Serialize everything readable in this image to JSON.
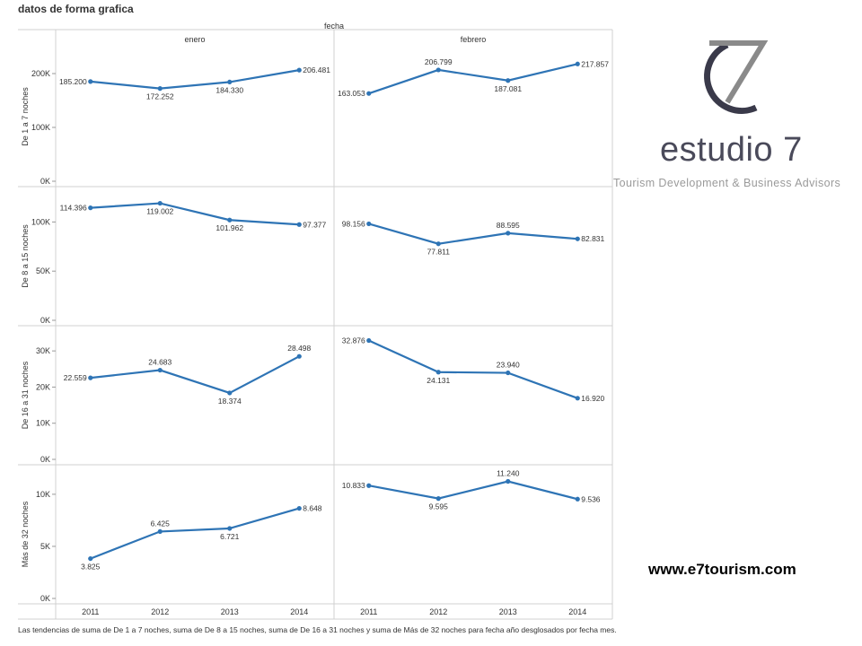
{
  "page": {
    "title": "datos de forma grafica",
    "caption": "Las tendencias de suma de De 1 a 7 noches, suma de De 8 a 15 noches, suma de De 16 a 31 noches y suma de Más de 32 noches para fecha año desglosados por fecha mes.",
    "website": "www.e7tourism.com"
  },
  "logo": {
    "name": "estudio 7",
    "tagline": "Tourism Development & Business Advisors"
  },
  "colors": {
    "line": "#2e74b5",
    "grid": "#d0d0d0",
    "text": "#333333"
  },
  "chart_data": {
    "type": "line",
    "column_header": "fecha",
    "columns": [
      "enero",
      "febrero"
    ],
    "x": [
      "2011",
      "2012",
      "2013",
      "2014"
    ],
    "rows": [
      {
        "label": "De 1 a 7 noches",
        "ticks": [
          {
            "v": 0,
            "t": "0K"
          },
          {
            "v": 100000,
            "t": "100K"
          },
          {
            "v": 200000,
            "t": "200K"
          }
        ],
        "ylim": [
          0,
          230000
        ],
        "series": [
          {
            "values": [
              185200,
              172252,
              184330,
              206481
            ],
            "labels": [
              "185.200",
              "172.252",
              "184.330",
              "206.481"
            ],
            "pos": [
              "left",
              "below",
              "below",
              "right"
            ]
          },
          {
            "values": [
              163053,
              206799,
              187081,
              217857
            ],
            "labels": [
              "163.053",
              "206.799",
              "187.081",
              "217.857"
            ],
            "pos": [
              "left",
              "above",
              "below",
              "right"
            ]
          }
        ]
      },
      {
        "label": "De 8 a 15 noches",
        "ticks": [
          {
            "v": 0,
            "t": "0K"
          },
          {
            "v": 50000,
            "t": "50K"
          },
          {
            "v": 100000,
            "t": "100K"
          }
        ],
        "ylim": [
          0,
          125000
        ],
        "series": [
          {
            "values": [
              114396,
              119002,
              101962,
              97377
            ],
            "labels": [
              "114.396",
              "119.002",
              "101.962",
              "97.377"
            ],
            "pos": [
              "left",
              "below",
              "below",
              "right"
            ]
          },
          {
            "values": [
              98156,
              77811,
              88595,
              82831
            ],
            "labels": [
              "98.156",
              "77.811",
              "88.595",
              "82.831"
            ],
            "pos": [
              "left",
              "below",
              "above",
              "right"
            ]
          }
        ]
      },
      {
        "label": "De 16 a 31 noches",
        "ticks": [
          {
            "v": 0,
            "t": "0K"
          },
          {
            "v": 10000,
            "t": "10K"
          },
          {
            "v": 20000,
            "t": "20K"
          },
          {
            "v": 30000,
            "t": "30K"
          }
        ],
        "ylim": [
          0,
          34000
        ],
        "series": [
          {
            "values": [
              22559,
              24683,
              18374,
              28498
            ],
            "labels": [
              "22.559",
              "24.683",
              "18.374",
              "28.498"
            ],
            "pos": [
              "left",
              "above",
              "below",
              "above"
            ]
          },
          {
            "values": [
              32876,
              24131,
              23940,
              16920
            ],
            "labels": [
              "32.876",
              "24.131",
              "23.940",
              "16.920"
            ],
            "pos": [
              "left",
              "below",
              "above",
              "right"
            ]
          }
        ]
      },
      {
        "label": "Más de 32 noches",
        "ticks": [
          {
            "v": 0,
            "t": "0K"
          },
          {
            "v": 5000,
            "t": "5K"
          },
          {
            "v": 10000,
            "t": "10K"
          }
        ],
        "ylim": [
          0,
          11800
        ],
        "series": [
          {
            "values": [
              3825,
              6425,
              6721,
              8648
            ],
            "labels": [
              "3.825",
              "6.425",
              "6.721",
              "8.648"
            ],
            "pos": [
              "below",
              "above",
              "below",
              "right"
            ]
          },
          {
            "values": [
              10833,
              9595,
              11240,
              9536
            ],
            "labels": [
              "10.833",
              "9.595",
              "11.240",
              "9.536"
            ],
            "pos": [
              "left",
              "below",
              "above",
              "right"
            ]
          }
        ]
      }
    ]
  }
}
